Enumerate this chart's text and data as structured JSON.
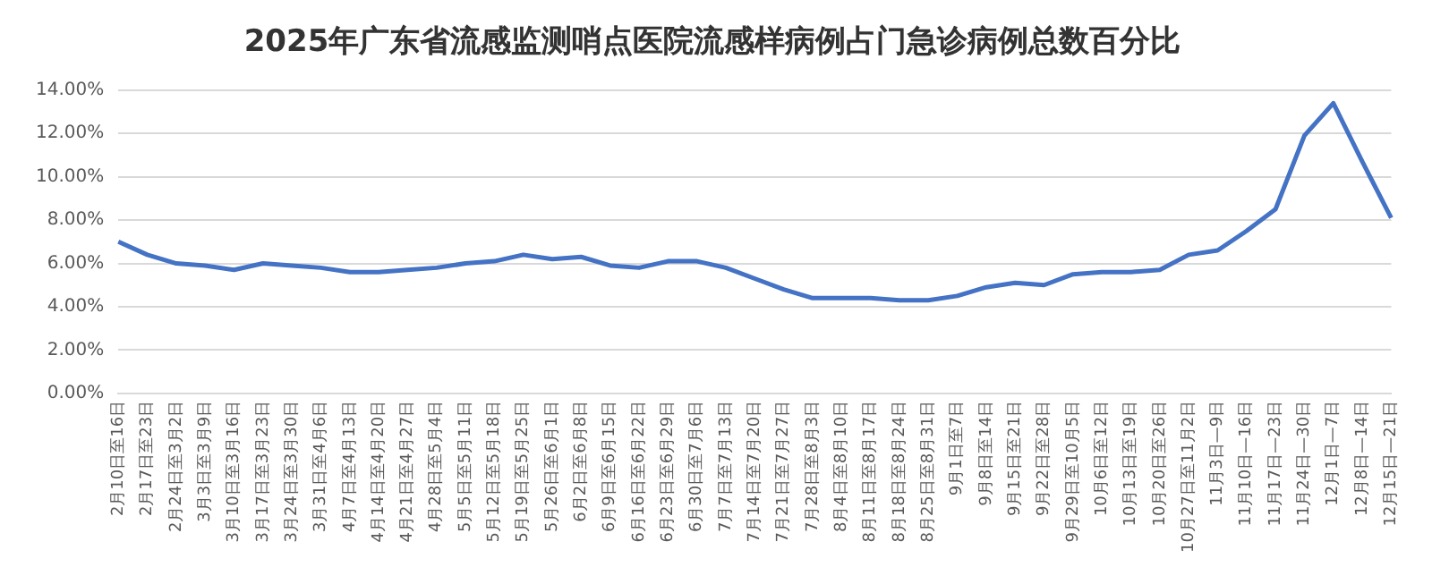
{
  "chart_data": {
    "type": "line",
    "title": "2025年广东省流感监测哨点医院流感样病例占门急诊病例总数百分比",
    "categories": [
      "2月10日至16日",
      "2月17日至23日",
      "2月24日至3月2日",
      "3月3日至3月9日",
      "3月10日至3月16日",
      "3月17日至3月23日",
      "3月24日至3月30日",
      "3月31日至4月6日",
      "4月7日至4月13日",
      "4月14日至4月20日",
      "4月21日至4月27日",
      "4月28日至5月4日",
      "5月5日至5月11日",
      "5月12日至5月18日",
      "5月19日至5月25日",
      "5月26日至6月1日",
      "6月2日至6月8日",
      "6月9日至6月15日",
      "6月16日至6月22日",
      "6月23日至6月29日",
      "6月30日至7月6日",
      "7月7日至7月13日",
      "7月14日至7月20日",
      "7月21日至7月27日",
      "7月28日至8月3日",
      "8月4日至8月10日",
      "8月11日至8月17日",
      "8月18日至8月24日",
      "8月25日至8月31日",
      "9月1日至7日",
      "9月8日至14日",
      "9月15日至21日",
      "9月22日至28日",
      "9月29日至10月5日",
      "10月6日至12日",
      "10月13日至19日",
      "10月20日至26日",
      "10月27日至11月2日",
      "11月3日—9日",
      "11月10日—16日",
      "11月17日—23日",
      "11月24日—30日",
      "12月1日—7日",
      "12月8日—14日",
      "12月15日—21日"
    ],
    "series": [
      {
        "color": "#4472c4",
        "values": [
          7.0,
          6.4,
          6.0,
          5.9,
          5.7,
          6.0,
          5.9,
          5.8,
          5.6,
          5.6,
          5.7,
          5.8,
          6.0,
          6.1,
          6.4,
          6.2,
          6.3,
          5.9,
          5.8,
          6.1,
          6.1,
          5.8,
          5.3,
          4.8,
          4.4,
          4.4,
          4.4,
          4.3,
          4.3,
          4.5,
          4.9,
          5.1,
          5.0,
          5.5,
          5.6,
          5.6,
          5.7,
          6.4,
          6.6,
          7.5,
          8.5,
          11.9,
          13.4,
          10.7,
          8.1
        ]
      }
    ],
    "ylim": [
      0,
      14
    ],
    "yticks": [
      {
        "value": 0,
        "label": "0.00%"
      },
      {
        "value": 2,
        "label": "2.00%"
      },
      {
        "value": 4,
        "label": "4.00%"
      },
      {
        "value": 6,
        "label": "6.00%"
      },
      {
        "value": 8,
        "label": "8.00%"
      },
      {
        "value": 10,
        "label": "10.00%"
      },
      {
        "value": 12,
        "label": "12.00%"
      },
      {
        "value": 14,
        "label": "14.00%"
      }
    ],
    "grid": "y",
    "legend": false,
    "marker": "none",
    "line_style": "solid"
  }
}
